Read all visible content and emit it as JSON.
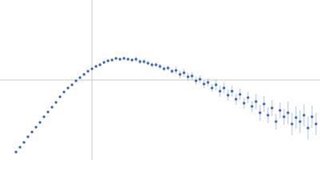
{
  "chart_data": {
    "type": "scatter",
    "xlim": [
      0,
      4
    ],
    "ylim": [
      -1,
      1
    ],
    "reference_lines": {
      "x": 1.15,
      "y": 0,
      "color": "#c8c8c8"
    },
    "series": [
      {
        "color": "#3561bd",
        "error_color": "#9fb5e2",
        "x": [
          0.2,
          0.25,
          0.3,
          0.35,
          0.4,
          0.45,
          0.5,
          0.55,
          0.6,
          0.65,
          0.7,
          0.75,
          0.8,
          0.85,
          0.9,
          0.95,
          1.0,
          1.05,
          1.1,
          1.15,
          1.2,
          1.25,
          1.3,
          1.35,
          1.4,
          1.45,
          1.5,
          1.55,
          1.6,
          1.65,
          1.7,
          1.75,
          1.8,
          1.85,
          1.9,
          1.95,
          2.0,
          2.05,
          2.1,
          2.15,
          2.2,
          2.25,
          2.3,
          2.35,
          2.4,
          2.45,
          2.5,
          2.55,
          2.6,
          2.65,
          2.7,
          2.75,
          2.8,
          2.85,
          2.9,
          2.95,
          3.0,
          3.05,
          3.1,
          3.15,
          3.2,
          3.25,
          3.3,
          3.35,
          3.4,
          3.45,
          3.5,
          3.55,
          3.6,
          3.65,
          3.7,
          3.75,
          3.8,
          3.85,
          3.9,
          3.95
        ],
        "values": [
          -0.9,
          -0.84,
          -0.78,
          -0.71,
          -0.65,
          -0.59,
          -0.53,
          -0.46,
          -0.4,
          -0.34,
          -0.28,
          -0.21,
          -0.15,
          -0.1,
          -0.06,
          -0.01,
          0.03,
          0.07,
          0.11,
          0.14,
          0.17,
          0.19,
          0.22,
          0.24,
          0.25,
          0.27,
          0.26,
          0.27,
          0.26,
          0.25,
          0.26,
          0.23,
          0.23,
          0.21,
          0.19,
          0.19,
          0.17,
          0.14,
          0.15,
          0.11,
          0.12,
          0.07,
          0.09,
          0.04,
          0.05,
          -0.01,
          0.01,
          -0.05,
          -0.03,
          -0.1,
          -0.06,
          -0.14,
          -0.1,
          -0.19,
          -0.14,
          -0.24,
          -0.18,
          -0.29,
          -0.22,
          -0.33,
          -0.27,
          -0.41,
          -0.3,
          -0.44,
          -0.35,
          -0.52,
          -0.38,
          -0.46,
          -0.41,
          -0.55,
          -0.47,
          -0.52,
          -0.44,
          -0.6,
          -0.46,
          -0.55
        ],
        "errors": [
          0.01,
          0.01,
          0.01,
          0.01,
          0.01,
          0.01,
          0.01,
          0.01,
          0.01,
          0.01,
          0.01,
          0.01,
          0.01,
          0.01,
          0.01,
          0.01,
          0.01,
          0.01,
          0.01,
          0.01,
          0.02,
          0.02,
          0.02,
          0.02,
          0.02,
          0.02,
          0.02,
          0.02,
          0.02,
          0.02,
          0.03,
          0.03,
          0.03,
          0.03,
          0.03,
          0.03,
          0.03,
          0.03,
          0.03,
          0.03,
          0.05,
          0.05,
          0.05,
          0.05,
          0.05,
          0.05,
          0.05,
          0.05,
          0.05,
          0.05,
          0.07,
          0.07,
          0.07,
          0.07,
          0.07,
          0.07,
          0.07,
          0.07,
          0.07,
          0.07,
          0.1,
          0.1,
          0.1,
          0.1,
          0.1,
          0.1,
          0.1,
          0.1,
          0.14,
          0.14,
          0.14,
          0.14,
          0.14,
          0.14,
          0.14,
          0.14
        ]
      }
    ]
  }
}
